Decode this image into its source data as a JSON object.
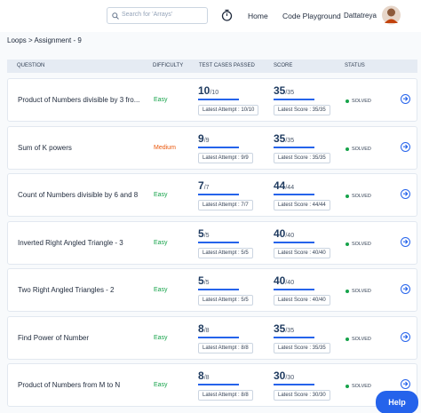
{
  "nav": {
    "search_placeholder": "Search for 'Arrays'",
    "links": [
      "Home",
      "Code Playground"
    ],
    "user": "Dattatreya"
  },
  "breadcrumb": "Loops > Assignment - 9",
  "table": {
    "headers": [
      "QUESTION",
      "DIFFICULTY",
      "TEST CASES PASSED",
      "SCORE",
      "STATUS"
    ],
    "rows": [
      {
        "question": "Product of Numbers divisible by 3 fro...",
        "difficulty": "Easy",
        "passed": "10",
        "passed_total": "/10",
        "latest_attempt": "Latest Attempt : 10/10",
        "score": "35",
        "score_total": "/35",
        "latest_score": "Latest Score : 35/35",
        "status": "SOLVED"
      },
      {
        "question": "Sum of K powers",
        "difficulty": "Medium",
        "passed": "9",
        "passed_total": "/9",
        "latest_attempt": "Latest Attempt : 9/9",
        "score": "35",
        "score_total": "/35",
        "latest_score": "Latest Score : 35/35",
        "status": "SOLVED"
      },
      {
        "question": "Count of Numbers divisible by 6 and 8",
        "difficulty": "Easy",
        "passed": "7",
        "passed_total": "/7",
        "latest_attempt": "Latest Attempt : 7/7",
        "score": "44",
        "score_total": "/44",
        "latest_score": "Latest Score : 44/44",
        "status": "SOLVED"
      },
      {
        "question": "Inverted Right Angled Triangle - 3",
        "difficulty": "Easy",
        "passed": "5",
        "passed_total": "/5",
        "latest_attempt": "Latest Attempt : 5/5",
        "score": "40",
        "score_total": "/40",
        "latest_score": "Latest Score : 40/40",
        "status": "SOLVED"
      },
      {
        "question": "Two Right Angled Triangles - 2",
        "difficulty": "Easy",
        "passed": "5",
        "passed_total": "/5",
        "latest_attempt": "Latest Attempt : 5/5",
        "score": "40",
        "score_total": "/40",
        "latest_score": "Latest Score : 40/40",
        "status": "SOLVED"
      },
      {
        "question": "Find Power of Number",
        "difficulty": "Easy",
        "passed": "8",
        "passed_total": "/8",
        "latest_attempt": "Latest Attempt : 8/8",
        "score": "35",
        "score_total": "/35",
        "latest_score": "Latest Score : 35/35",
        "status": "SOLVED"
      },
      {
        "question": "Product of Numbers from M to N",
        "difficulty": "Easy",
        "passed": "8",
        "passed_total": "/8",
        "latest_attempt": "Latest Attempt : 8/8",
        "score": "30",
        "score_total": "/30",
        "latest_score": "Latest Score : 30/30",
        "status": "SOLVED"
      }
    ]
  },
  "help_button": "Help"
}
